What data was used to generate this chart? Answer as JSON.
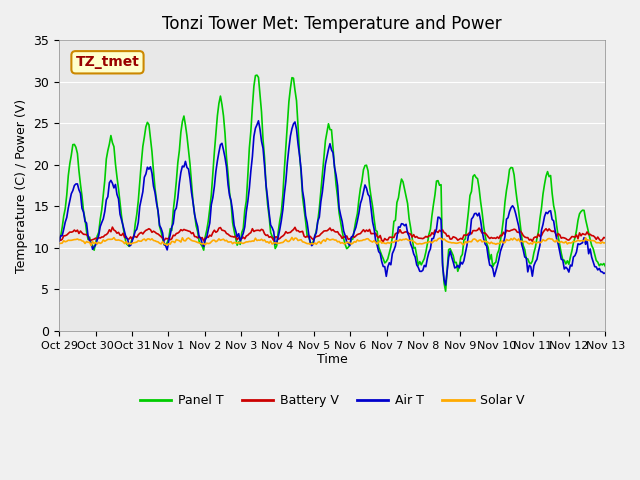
{
  "title": "Tonzi Tower Met: Temperature and Power",
  "xlabel": "Time",
  "ylabel": "Temperature (C) / Power (V)",
  "annotation_text": "TZ_tmet",
  "annotation_bg": "#ffffcc",
  "annotation_border": "#cc8800",
  "ylim": [
    0,
    35
  ],
  "yticks": [
    0,
    5,
    10,
    15,
    20,
    25,
    30,
    35
  ],
  "xtick_labels": [
    "Oct 29",
    "Oct 30",
    "Oct 31",
    "Nov 1",
    "Nov 2",
    "Nov 3",
    "Nov 4",
    "Nov 5",
    "Nov 6",
    "Nov 7",
    "Nov 8",
    "Nov 9",
    "Nov 10",
    "Nov 11",
    "Nov 12",
    "Nov 13"
  ],
  "bg_color": "#e8e8e8",
  "plot_bg": "#e8e8e8",
  "line_colors": {
    "panel_t": "#00cc00",
    "battery_v": "#cc0000",
    "air_t": "#0000cc",
    "solar_v": "#ffaa00"
  },
  "legend_labels": [
    "Panel T",
    "Battery V",
    "Air T",
    "Solar V"
  ],
  "num_points": 360
}
